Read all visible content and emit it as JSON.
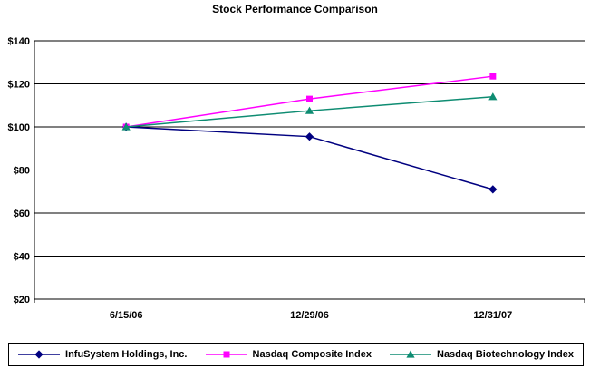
{
  "chart_data": {
    "type": "line",
    "title": "Stock Performance Comparison",
    "x": [
      "6/15/06",
      "12/29/06",
      "12/31/07"
    ],
    "series": [
      {
        "name": "InfuSystem Holdings, Inc.",
        "color": "#000080",
        "marker": "diamond",
        "values": [
          100,
          95.5,
          71
        ]
      },
      {
        "name": "Nasdaq Composite Index",
        "color": "#ff00ff",
        "marker": "square",
        "values": [
          100,
          113,
          123.5
        ]
      },
      {
        "name": "Nasdaq Biotechnology Index",
        "color": "#0e8c72",
        "marker": "triangle",
        "values": [
          100,
          107.5,
          114
        ]
      }
    ],
    "ylim": [
      20,
      140
    ],
    "ytick_step": 20,
    "ytick_labels": [
      "$20",
      "$40",
      "$60",
      "$80",
      "$100",
      "$120",
      "$140"
    ],
    "grid": true,
    "legend_position": "bottom",
    "axis_color": "#000000",
    "background": "#ffffff"
  }
}
